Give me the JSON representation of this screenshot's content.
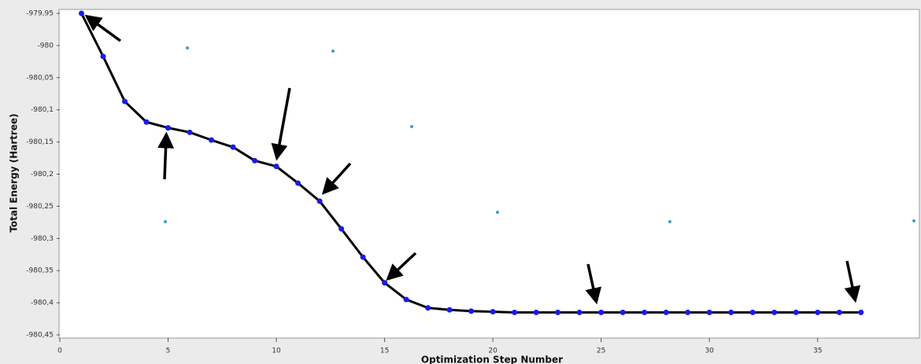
{
  "chart_data": {
    "type": "line",
    "x_label": "Optimization Step Number",
    "y_label": "Total Energy (Hartree)",
    "x": [
      1,
      2,
      3,
      4,
      5,
      6,
      7,
      8,
      9,
      10,
      11,
      12,
      13,
      14,
      15,
      16,
      17,
      18,
      19,
      20,
      21,
      22,
      23,
      24,
      25,
      26,
      27,
      28,
      29,
      30,
      31,
      32,
      33,
      34,
      35,
      36,
      37
    ],
    "series": [
      {
        "color": "#000000",
        "marker_color": "#1a1aee",
        "values": [
          -979.95,
          -980.017,
          -980.087,
          -980.119,
          -980.128,
          -980.135,
          -980.147,
          -980.158,
          -980.179,
          -980.188,
          -980.214,
          -980.242,
          -980.285,
          -980.329,
          -980.369,
          -980.395,
          -980.408,
          -980.411,
          -980.413,
          -980.414,
          -980.415,
          -980.415,
          -980.415,
          -980.415,
          -980.415,
          -980.415,
          -980.415,
          -980.415,
          -980.415,
          -980.415,
          -980.415,
          -980.415,
          -980.415,
          -980.415,
          -980.415,
          -980.415,
          -980.415
        ]
      }
    ],
    "xlim": [
      0,
      39.7
    ],
    "xticks": [
      0,
      5,
      10,
      15,
      20,
      25,
      30,
      35
    ],
    "ylim": [
      -980.45,
      -979.95
    ],
    "yticks": [
      {
        "value": -979.95,
        "label": "-979,95"
      },
      -980,
      {
        "value": -980.05,
        "label": "-980,05"
      },
      {
        "value": -980.1,
        "label": "-980,1"
      },
      {
        "value": -980.15,
        "label": "-980,15"
      },
      {
        "value": -980.2,
        "label": "-980,2"
      },
      {
        "value": -980.25,
        "label": "-980,25"
      },
      {
        "value": -980.3,
        "label": "-980,3"
      },
      {
        "value": -980.35,
        "label": "-980,35"
      },
      {
        "value": -980.4,
        "label": "-980,4"
      },
      {
        "value": -980.45,
        "label": "-980,45"
      }
    ]
  }
}
